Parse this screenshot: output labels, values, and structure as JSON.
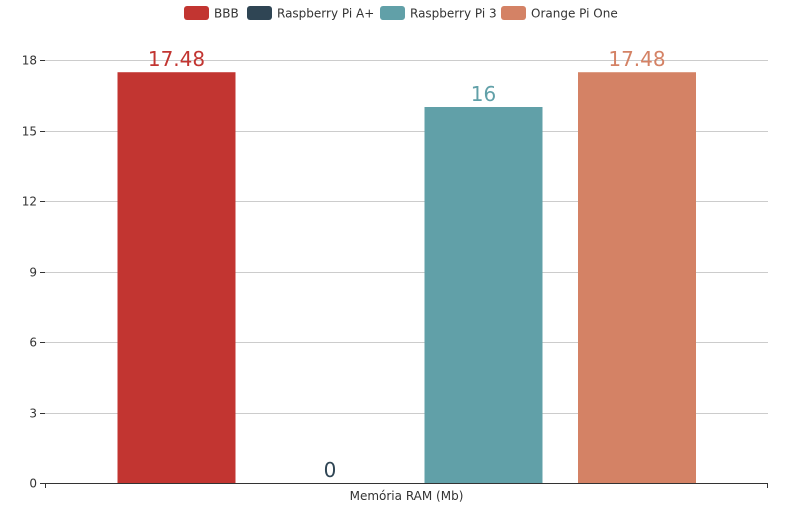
{
  "chart_data": {
    "type": "bar",
    "categories": [
      "Memória RAM (Mb)"
    ],
    "series": [
      {
        "name": "BBB",
        "values": [
          17.48
        ],
        "color": "#c23531"
      },
      {
        "name": "Raspberry Pi A+",
        "values": [
          0
        ],
        "color": "#2f4554"
      },
      {
        "name": "Raspberry Pi 3",
        "values": [
          16
        ],
        "color": "#61a0a8"
      },
      {
        "name": "Orange Pi One",
        "values": [
          17.48
        ],
        "color": "#d48265"
      }
    ],
    "data_labels": [
      "17.48",
      "0",
      "16",
      "17.48"
    ],
    "ylim": [
      0,
      18
    ],
    "yticks": [
      0,
      3,
      6,
      9,
      12,
      15,
      18
    ],
    "grid": true,
    "legend_position": "top-center",
    "title": "",
    "xlabel": "",
    "ylabel": ""
  }
}
